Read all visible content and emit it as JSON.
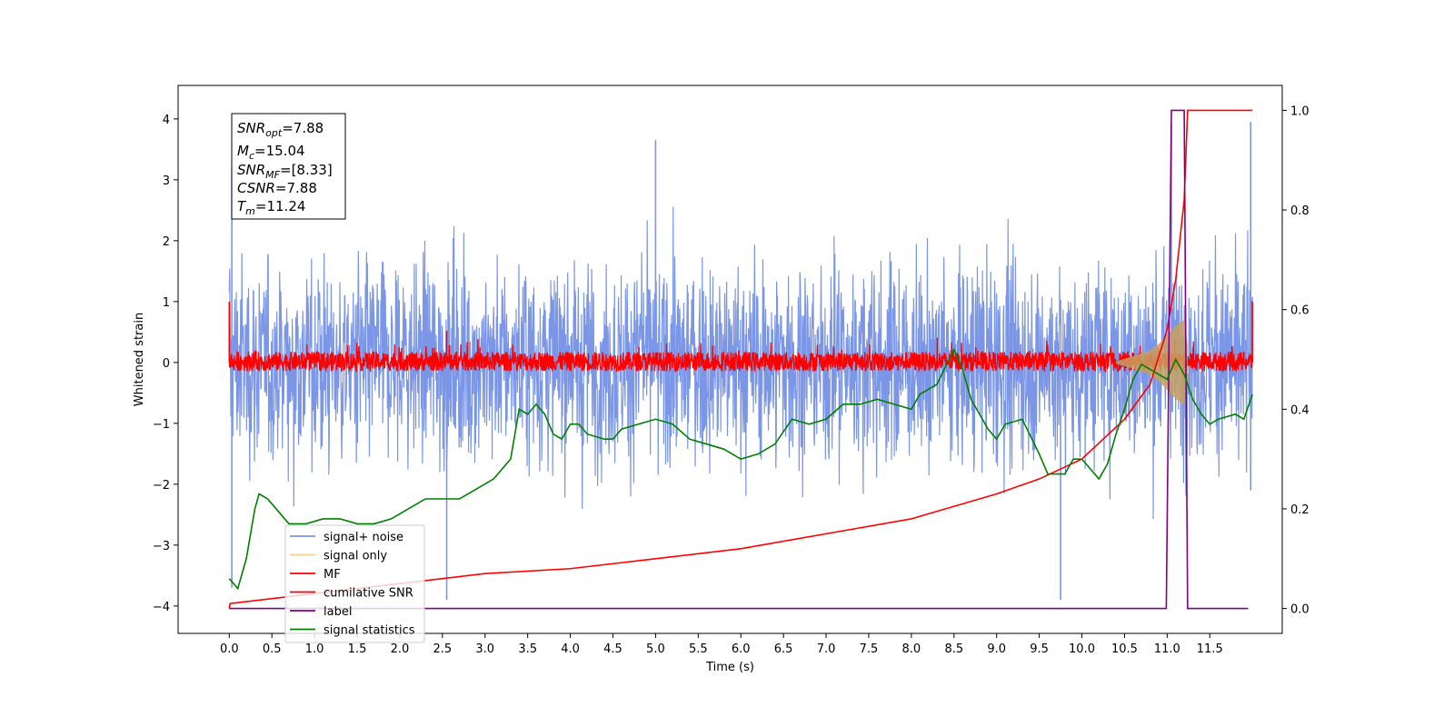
{
  "chart_data": {
    "type": "line",
    "xlabel": "Time (s)",
    "ylabel": "Whitened strain",
    "xlim": [
      -0.6,
      12.35
    ],
    "ylim": [
      -4.45,
      4.55
    ],
    "y2lim": [
      -0.05,
      1.05
    ],
    "x_ticks": [
      "0.0",
      "0.5",
      "1.0",
      "1.5",
      "2.0",
      "2.5",
      "3.0",
      "3.5",
      "4.0",
      "4.5",
      "5.0",
      "5.5",
      "6.0",
      "6.5",
      "7.0",
      "7.5",
      "8.0",
      "8.5",
      "9.0",
      "9.5",
      "10.0",
      "10.5",
      "11.0",
      "11.5"
    ],
    "y_ticks": [
      "4",
      "3",
      "2",
      "1",
      "0",
      "−1",
      "−2",
      "−3",
      "−4"
    ],
    "y2_ticks": [
      "1.0",
      "0.8",
      "0.6",
      "0.4",
      "0.2",
      "0.0"
    ],
    "legend_position": "lower-left",
    "annotation": {
      "snr_opt": {
        "base": "SNR",
        "sub": "opt",
        "value": "=7.88"
      },
      "mc": {
        "base": "M",
        "sub": "c",
        "value": "=15.04"
      },
      "snr_mf": {
        "base": "SNR",
        "sub": "MF",
        "value": "=[8.33]"
      },
      "csnr": {
        "base": "CSNR",
        "value": "=7.88"
      },
      "tm": {
        "base": "T",
        "sub": "m",
        "value": "=11.24"
      }
    },
    "series": [
      {
        "name": "signal+ noise",
        "color": "#7b96e6",
        "axis": "left",
        "kind": "noise",
        "x_range": [
          0.0,
          12.0
        ],
        "band": [
          -1.5,
          1.6
        ],
        "spikes": [
          [
            0.03,
            3.2
          ],
          [
            0.03,
            -3.7
          ],
          [
            5.0,
            3.65
          ],
          [
            2.55,
            -3.9
          ],
          [
            9.75,
            -3.9
          ],
          [
            11.05,
            3.9
          ],
          [
            11.98,
            3.95
          ],
          [
            11.98,
            -2.1
          ]
        ]
      },
      {
        "name": "signal only",
        "color": "#f2d08c",
        "axis": "left",
        "kind": "chirp",
        "x": [
          10.4,
          10.6,
          10.8,
          10.9,
          11.0,
          11.1,
          11.2,
          11.24
        ],
        "amp": [
          0.02,
          0.1,
          0.2,
          0.3,
          0.45,
          0.6,
          0.7,
          0.3
        ]
      },
      {
        "name": "MF",
        "color": "#ff0000",
        "axis": "left",
        "kind": "mf",
        "x_range": [
          0.0,
          12.0
        ],
        "band": 0.2,
        "spikes": [
          [
            0.0,
            1.0
          ],
          [
            0.0,
            0.6
          ],
          [
            2.55,
            0.52
          ],
          [
            12.0,
            1.0
          ]
        ]
      },
      {
        "name": "cumilative SNR",
        "color": "#ff0000",
        "axis": "right",
        "x": [
          0.0,
          0.01,
          1.0,
          2.0,
          3.0,
          4.0,
          5.0,
          6.0,
          7.0,
          8.0,
          9.0,
          9.5,
          10.0,
          10.5,
          10.8,
          11.0,
          11.1,
          11.2,
          11.24,
          11.3,
          12.0
        ],
        "values": [
          0.0,
          0.01,
          0.03,
          0.05,
          0.07,
          0.08,
          0.1,
          0.12,
          0.15,
          0.18,
          0.23,
          0.26,
          0.3,
          0.38,
          0.45,
          0.56,
          0.66,
          0.82,
          1.0,
          1.0,
          1.0
        ]
      },
      {
        "name": "label",
        "color": "#800080",
        "axis": "right",
        "x": [
          0.0,
          10.99,
          11.05,
          11.2,
          11.24,
          11.95
        ],
        "values": [
          0.0,
          0.0,
          1.0,
          1.0,
          0.0,
          0.0
        ]
      },
      {
        "name": "signal statistics",
        "color": "#008000",
        "axis": "right",
        "x": [
          0.0,
          0.1,
          0.2,
          0.3,
          0.35,
          0.45,
          0.55,
          0.7,
          0.9,
          1.1,
          1.3,
          1.5,
          1.7,
          1.9,
          2.1,
          2.3,
          2.5,
          2.7,
          2.9,
          3.1,
          3.3,
          3.4,
          3.5,
          3.6,
          3.7,
          3.8,
          3.9,
          4.0,
          4.1,
          4.2,
          4.4,
          4.5,
          4.6,
          4.8,
          5.0,
          5.2,
          5.4,
          5.6,
          5.8,
          6.0,
          6.2,
          6.4,
          6.6,
          6.8,
          7.0,
          7.2,
          7.4,
          7.6,
          7.8,
          8.0,
          8.1,
          8.3,
          8.5,
          8.6,
          8.7,
          8.9,
          9.0,
          9.1,
          9.3,
          9.5,
          9.6,
          9.8,
          9.9,
          10.0,
          10.1,
          10.2,
          10.3,
          10.4,
          10.5,
          10.6,
          10.7,
          10.8,
          10.9,
          11.0,
          11.1,
          11.2,
          11.3,
          11.4,
          11.5,
          11.6,
          11.8,
          11.9,
          12.0
        ],
        "values": [
          0.06,
          0.04,
          0.1,
          0.2,
          0.23,
          0.22,
          0.2,
          0.17,
          0.17,
          0.18,
          0.18,
          0.17,
          0.17,
          0.18,
          0.2,
          0.22,
          0.22,
          0.22,
          0.24,
          0.26,
          0.3,
          0.4,
          0.39,
          0.41,
          0.39,
          0.35,
          0.34,
          0.37,
          0.37,
          0.35,
          0.34,
          0.34,
          0.36,
          0.37,
          0.38,
          0.37,
          0.34,
          0.33,
          0.32,
          0.3,
          0.31,
          0.33,
          0.38,
          0.37,
          0.38,
          0.41,
          0.41,
          0.42,
          0.41,
          0.4,
          0.43,
          0.45,
          0.52,
          0.48,
          0.42,
          0.36,
          0.34,
          0.37,
          0.38,
          0.31,
          0.27,
          0.27,
          0.3,
          0.3,
          0.28,
          0.26,
          0.29,
          0.35,
          0.4,
          0.46,
          0.49,
          0.48,
          0.47,
          0.46,
          0.5,
          0.47,
          0.42,
          0.39,
          0.37,
          0.38,
          0.39,
          0.38,
          0.43
        ]
      }
    ]
  }
}
